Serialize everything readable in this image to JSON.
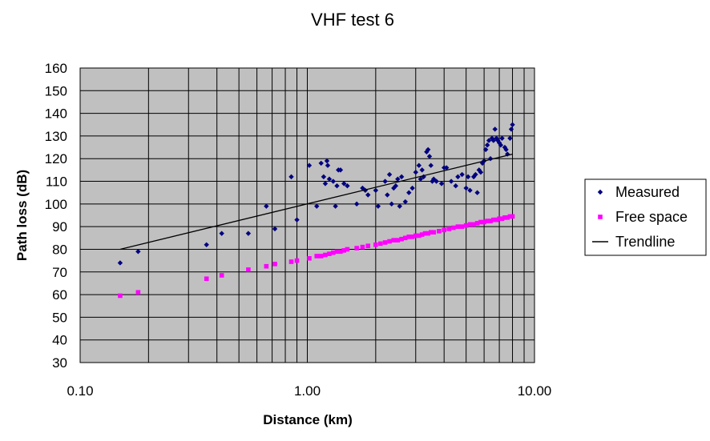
{
  "chart_data": {
    "type": "scatter",
    "title": "VHF test 6",
    "xlabel": "Distance (km)",
    "ylabel": "Path loss (dB)",
    "xscale": "log",
    "xlim": [
      0.1,
      10
    ],
    "ylim": [
      30,
      160
    ],
    "xticks": [
      0.1,
      1,
      10
    ],
    "xtick_labels": [
      "0.10",
      "1.00",
      "10.00"
    ],
    "yticks": [
      30,
      40,
      50,
      60,
      70,
      80,
      90,
      100,
      110,
      120,
      130,
      140,
      150,
      160
    ],
    "ytick_labels": [
      "30",
      "40",
      "50",
      "60",
      "70",
      "80",
      "90",
      "100",
      "110",
      "120",
      "130",
      "140",
      "150",
      "160"
    ],
    "grid": true,
    "plot_background": "#c0c0c0",
    "legend_position": "right",
    "series": [
      {
        "name": "Measured",
        "type": "scatter",
        "marker": "diamond",
        "color": "#000080",
        "x": [
          0.15,
          0.18,
          0.36,
          0.42,
          0.55,
          0.66,
          0.72,
          0.85,
          0.9,
          1.02,
          1.1,
          1.15,
          1.18,
          1.2,
          1.22,
          1.23,
          1.25,
          1.3,
          1.33,
          1.35,
          1.37,
          1.4,
          1.45,
          1.5,
          1.65,
          1.75,
          1.8,
          1.85,
          2.0,
          2.05,
          2.2,
          2.25,
          2.3,
          2.35,
          2.4,
          2.45,
          2.5,
          2.55,
          2.6,
          2.7,
          2.8,
          2.9,
          3.0,
          3.1,
          3.15,
          3.2,
          3.25,
          3.35,
          3.4,
          3.45,
          3.5,
          3.55,
          3.6,
          3.7,
          3.9,
          4.0,
          4.1,
          4.3,
          4.5,
          4.6,
          4.8,
          5.0,
          5.1,
          5.2,
          5.4,
          5.5,
          5.6,
          5.7,
          5.8,
          5.9,
          6.0,
          6.1,
          6.2,
          6.3,
          6.4,
          6.5,
          6.6,
          6.7,
          6.8,
          6.9,
          7.0,
          7.1,
          7.2,
          7.4,
          7.5,
          7.6,
          7.8,
          7.9,
          8.0
        ],
        "y": [
          74,
          79,
          82,
          87,
          87,
          99,
          89,
          112,
          93,
          117,
          99,
          118,
          112,
          109,
          119,
          117,
          111,
          110,
          99,
          108,
          115,
          115,
          109,
          108,
          100,
          107,
          106,
          104,
          106,
          99,
          110,
          104,
          113,
          100,
          107,
          108,
          111,
          99,
          112,
          101,
          105,
          107,
          114,
          117,
          111,
          115,
          112,
          123,
          124,
          121,
          117,
          110,
          111,
          110,
          109,
          116,
          116,
          110,
          108,
          112,
          113,
          107,
          112,
          106,
          112,
          113,
          105,
          115,
          114,
          118,
          119,
          124,
          126,
          128,
          120,
          129,
          128,
          133,
          129,
          128,
          127,
          126,
          129,
          125,
          124,
          122,
          129,
          133,
          135
        ]
      },
      {
        "name": "Free space",
        "type": "scatter",
        "marker": "square",
        "color": "#ff00ff",
        "x": [
          0.15,
          0.18,
          0.36,
          0.42,
          0.55,
          0.66,
          0.72,
          0.85,
          0.9,
          1.02,
          1.1,
          1.15,
          1.2,
          1.25,
          1.3,
          1.35,
          1.4,
          1.45,
          1.5,
          1.65,
          1.75,
          1.85,
          2.0,
          2.1,
          2.2,
          2.3,
          2.4,
          2.5,
          2.6,
          2.7,
          2.8,
          2.9,
          3.0,
          3.1,
          3.2,
          3.3,
          3.4,
          3.5,
          3.6,
          3.8,
          4.0,
          4.2,
          4.4,
          4.6,
          4.8,
          5.0,
          5.2,
          5.4,
          5.6,
          5.8,
          6.0,
          6.2,
          6.4,
          6.6,
          6.8,
          7.0,
          7.2,
          7.4,
          7.6,
          7.8,
          8.0
        ],
        "y": [
          59.5,
          61,
          67,
          68.5,
          71,
          72.5,
          73.5,
          74.5,
          75,
          76,
          77,
          77,
          77.5,
          78,
          78.5,
          79,
          79,
          79.5,
          80,
          80.5,
          81,
          81.5,
          82,
          82.5,
          83,
          83.5,
          84,
          84,
          84.5,
          85,
          85.5,
          85.5,
          86,
          86,
          86.5,
          87,
          87,
          87.5,
          87.5,
          88,
          88.5,
          89,
          89.5,
          90,
          90,
          90.5,
          91,
          91,
          91.5,
          92,
          92,
          92.5,
          92.5,
          93,
          93,
          93.5,
          93.5,
          94,
          94,
          94.5,
          94.5
        ]
      },
      {
        "name": "Trendline",
        "type": "line",
        "color": "#000000",
        "x": [
          0.15,
          8.0
        ],
        "y": [
          80,
          122
        ]
      }
    ]
  }
}
